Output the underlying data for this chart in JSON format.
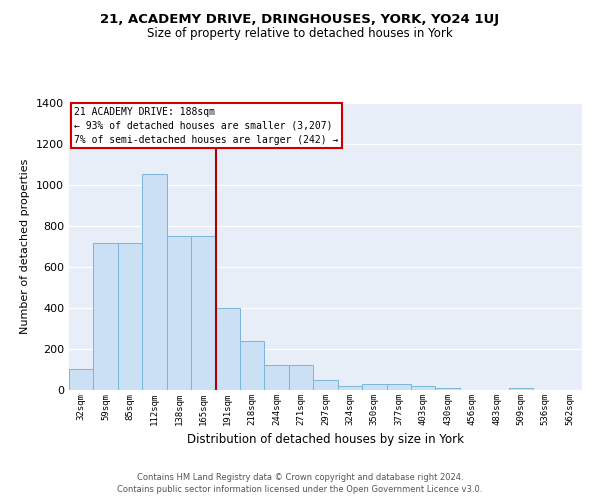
{
  "title_line1": "21, ACADEMY DRIVE, DRINGHOUSES, YORK, YO24 1UJ",
  "title_line2": "Size of property relative to detached houses in York",
  "xlabel": "Distribution of detached houses by size in York",
  "ylabel": "Number of detached properties",
  "categories": [
    "32sqm",
    "59sqm",
    "85sqm",
    "112sqm",
    "138sqm",
    "165sqm",
    "191sqm",
    "218sqm",
    "244sqm",
    "271sqm",
    "297sqm",
    "324sqm",
    "350sqm",
    "377sqm",
    "403sqm",
    "430sqm",
    "456sqm",
    "483sqm",
    "509sqm",
    "536sqm",
    "562sqm"
  ],
  "values": [
    100,
    715,
    715,
    1050,
    750,
    750,
    400,
    240,
    120,
    120,
    50,
    20,
    30,
    30,
    20,
    10,
    0,
    0,
    10,
    0,
    0
  ],
  "bar_color": "#cce0f5",
  "bar_edge_color": "#7ab5d9",
  "property_line_x": 6,
  "annotation_line1": "21 ACADEMY DRIVE: 188sqm",
  "annotation_line2": "← 93% of detached houses are smaller (3,207)",
  "annotation_line3": "7% of semi-detached houses are larger (242) →",
  "annotation_box_facecolor": "#ffffff",
  "annotation_box_edgecolor": "#cc0000",
  "property_line_color": "#aa0000",
  "ylim": [
    0,
    1400
  ],
  "yticks": [
    0,
    200,
    400,
    600,
    800,
    1000,
    1200,
    1400
  ],
  "plot_bg_color": "#e8eef8",
  "grid_color": "#ffffff",
  "fig_bg_color": "#ffffff",
  "footer_line1": "Contains HM Land Registry data © Crown copyright and database right 2024.",
  "footer_line2": "Contains public sector information licensed under the Open Government Licence v3.0."
}
